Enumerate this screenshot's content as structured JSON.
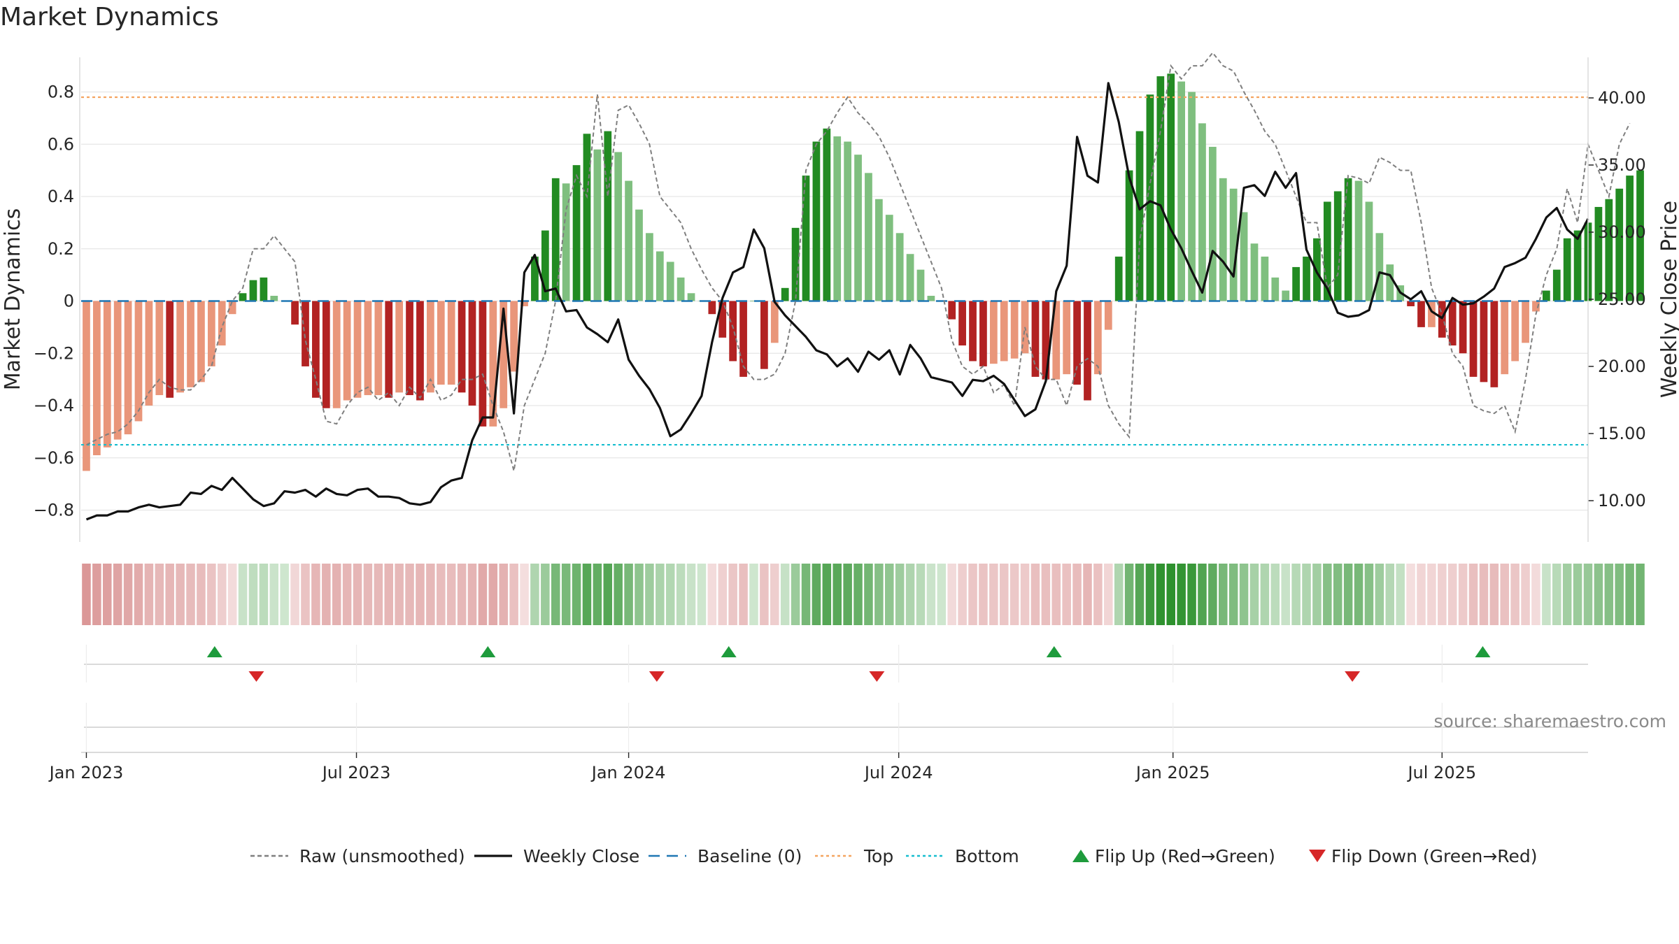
{
  "chart_data": {
    "type": "bar",
    "title": "Market Dynamics",
    "ylabel": "Market Dynamics",
    "y2label": "Weekly Close Price",
    "ylim": [
      -0.92,
      0.92
    ],
    "y2lim": [
      6.0,
      43.0
    ],
    "y_ticks": [
      -0.8,
      -0.6,
      -0.4,
      -0.2,
      0,
      0.2,
      0.4,
      0.6,
      0.8
    ],
    "y_tick_labels": [
      "−0.8",
      "−0.6",
      "−0.4",
      "−0.2",
      "0",
      "0.2",
      "0.4",
      "0.6",
      "0.8"
    ],
    "y2_ticks": [
      10,
      15,
      20,
      25,
      30,
      35,
      40
    ],
    "y2_tick_labels": [
      "10.00",
      "15.00",
      "20.00",
      "25.00",
      "30.00",
      "35.00",
      "40.00"
    ],
    "x_tick_labels": [
      "Jan 2023",
      "Jul 2023",
      "Jan 2024",
      "Jul 2024",
      "Jan 2025",
      "Jul 2025"
    ],
    "x_tick_weeks": [
      1,
      26.9,
      53,
      78.9,
      105.2,
      131
    ],
    "weeks": 145,
    "top_line": 0.78,
    "bottom_line": -0.55,
    "baseline": 0,
    "grid": true,
    "legend_position": "bottom-center",
    "source": "source: sharemaestro.com",
    "series": [
      {
        "name": "Raw (unsmoothed)",
        "style": "dashed",
        "color": "#7f7f7f",
        "values": [
          -0.55,
          -0.53,
          -0.51,
          -0.5,
          -0.47,
          -0.42,
          -0.35,
          -0.3,
          -0.33,
          -0.34,
          -0.34,
          -0.3,
          -0.25,
          -0.1,
          0,
          0.05,
          0.2,
          0.2,
          0.25,
          0.2,
          0.15,
          -0.15,
          -0.3,
          -0.46,
          -0.47,
          -0.4,
          -0.35,
          -0.33,
          -0.38,
          -0.35,
          -0.4,
          -0.33,
          -0.37,
          -0.3,
          -0.38,
          -0.36,
          -0.3,
          -0.3,
          -0.28,
          -0.4,
          -0.5,
          -0.65,
          -0.4,
          -0.3,
          -0.2,
          0,
          0.35,
          0.48,
          0.4,
          0.79,
          0.4,
          0.73,
          0.75,
          0.68,
          0.6,
          0.4,
          0.35,
          0.3,
          0.2,
          0.12,
          0.05,
          0.0,
          -0.1,
          -0.25,
          -0.3,
          -0.3,
          -0.28,
          -0.2,
          0.0,
          0.5,
          0.6,
          0.65,
          0.72,
          0.78,
          0.72,
          0.68,
          0.63,
          0.55,
          0.45,
          0.35,
          0.25,
          0.15,
          0.05,
          -0.15,
          -0.25,
          -0.28,
          -0.25,
          -0.35,
          -0.32,
          -0.4,
          -0.1,
          -0.25,
          -0.3,
          -0.3,
          -0.4,
          -0.25,
          -0.22,
          -0.25,
          -0.4,
          -0.47,
          -0.52,
          0.23,
          0.45,
          0.65,
          0.9,
          0.85,
          0.9,
          0.9,
          0.95,
          0.9,
          0.88,
          0.8,
          0.73,
          0.65,
          0.6,
          0.5,
          0.4,
          0.3,
          0.3,
          0.05,
          0.1,
          0.48,
          0.47,
          0.45,
          0.55,
          0.53,
          0.5,
          0.5,
          0.3,
          0.05,
          -0.05,
          -0.2,
          -0.25,
          -0.4,
          -0.42,
          -0.43,
          -0.4,
          -0.5,
          -0.3,
          -0.05,
          0.1,
          0.2,
          0.43,
          0.3,
          0.6,
          0.5,
          0.4,
          0.6,
          0.68
        ]
      },
      {
        "name": "Weekly Close",
        "style": "solid",
        "color": "#111111",
        "axis": "right",
        "values": [
          8.6,
          8.9,
          8.9,
          9.2,
          9.2,
          9.5,
          9.7,
          9.5,
          9.6,
          9.7,
          10.6,
          10.5,
          11.1,
          10.8,
          11.7,
          10.9,
          10.1,
          9.6,
          9.8,
          10.7,
          10.6,
          10.8,
          10.3,
          10.9,
          10.5,
          10.4,
          10.8,
          10.9,
          10.3,
          10.3,
          10.2,
          9.8,
          9.7,
          9.9,
          11.0,
          11.5,
          11.7,
          14.5,
          16.2,
          16.2,
          24.3,
          16.5,
          27.0,
          28.3,
          25.6,
          25.8,
          24.1,
          24.2,
          22.9,
          22.4,
          21.8,
          23.5,
          20.5,
          19.3,
          18.3,
          16.9,
          14.8,
          15.3,
          16.5,
          17.8,
          21.8,
          25.1,
          27.0,
          27.4,
          30.2,
          28.8,
          24.8,
          23.8,
          23.0,
          22.2,
          21.2,
          20.9,
          20.0,
          20.6,
          19.6,
          21.1,
          20.5,
          21.2,
          19.4,
          21.6,
          20.6,
          19.2,
          19.0,
          18.8,
          17.8,
          19.0,
          18.9,
          19.3,
          18.7,
          17.5,
          16.3,
          16.8,
          18.9,
          25.6,
          27.5,
          37.1,
          34.2,
          33.7,
          41.1,
          38.2,
          34.1,
          31.7,
          32.3,
          32.0,
          30.2,
          28.8,
          27.1,
          25.5,
          28.6,
          27.8,
          26.7,
          33.3,
          33.5,
          32.7,
          34.5,
          33.3,
          34.4,
          28.7,
          27.0,
          25.8,
          24.0,
          23.7,
          23.8,
          24.2,
          27.0,
          26.8,
          25.5,
          25.0,
          25.6,
          24.1,
          23.6,
          25.1,
          24.6,
          24.7,
          25.2,
          25.8,
          27.4,
          27.7,
          28.1,
          29.5,
          31.1,
          31.8,
          30.2,
          29.5,
          31.0
        ]
      }
    ],
    "bars": {
      "name": "Market Dynamics",
      "values": [
        -0.65,
        -0.59,
        -0.56,
        -0.53,
        -0.51,
        -0.46,
        -0.4,
        -0.36,
        -0.37,
        -0.35,
        -0.33,
        -0.31,
        -0.25,
        -0.17,
        -0.05,
        0.03,
        0.08,
        0.09,
        0.02,
        0.0,
        -0.09,
        -0.25,
        -0.37,
        -0.41,
        -0.41,
        -0.38,
        -0.37,
        -0.36,
        -0.36,
        -0.37,
        -0.35,
        -0.36,
        -0.38,
        -0.35,
        -0.32,
        -0.32,
        -0.35,
        -0.4,
        -0.48,
        -0.48,
        -0.41,
        -0.27,
        -0.02,
        0.17,
        0.27,
        0.47,
        0.45,
        0.52,
        0.64,
        0.58,
        0.65,
        0.57,
        0.46,
        0.35,
        0.26,
        0.19,
        0.15,
        0.09,
        0.03,
        0.0,
        -0.05,
        -0.14,
        -0.23,
        -0.29,
        0.0,
        -0.26,
        -0.16,
        0.05,
        0.28,
        0.48,
        0.61,
        0.66,
        0.63,
        0.61,
        0.56,
        0.49,
        0.39,
        0.33,
        0.26,
        0.18,
        0.12,
        0.02,
        0.0,
        -0.07,
        -0.17,
        -0.23,
        -0.25,
        -0.24,
        -0.23,
        -0.22,
        -0.2,
        -0.29,
        -0.3,
        -0.3,
        -0.28,
        -0.32,
        -0.38,
        -0.28,
        -0.11,
        0.17,
        0.5,
        0.65,
        0.79,
        0.86,
        0.87,
        0.84,
        0.8,
        0.68,
        0.59,
        0.47,
        0.43,
        0.34,
        0.22,
        0.17,
        0.09,
        0.04,
        0.13,
        0.17,
        0.24,
        0.38,
        0.42,
        0.47,
        0.46,
        0.38,
        0.26,
        0.14,
        0.06,
        -0.02,
        -0.1,
        -0.1,
        -0.14,
        -0.17,
        -0.2,
        -0.29,
        -0.31,
        -0.33,
        -0.28,
        -0.23,
        -0.16,
        -0.04,
        0.04,
        0.12,
        0.24,
        0.27,
        0.3,
        0.36,
        0.39,
        0.43,
        0.48,
        0.5
      ],
      "colors": {
        "strong_up": "#228B22",
        "weak_up": "#7FBF7F",
        "strong_down": "#B22222",
        "weak_down": "#E9967A"
      }
    },
    "markers": {
      "flip_up_weeks": [
        13.3,
        39.5,
        62.6,
        93.8,
        134.9
      ],
      "flip_down_weeks": [
        17.3,
        55.7,
        76.8,
        122.4
      ]
    },
    "legend": [
      {
        "label": "Raw (unsmoothed)",
        "kind": "dashed",
        "color": "#7f7f7f"
      },
      {
        "label": "Weekly Close",
        "kind": "solid",
        "color": "#111111"
      },
      {
        "label": "Baseline (0)",
        "kind": "longdash",
        "color": "#1f77b4"
      },
      {
        "label": "Top",
        "kind": "dotted",
        "color": "#f4a460"
      },
      {
        "label": "Bottom",
        "kind": "dotted",
        "color": "#17becf"
      },
      {
        "label": "Flip Up (Red→Green)",
        "kind": "tri-up",
        "color": "#1e9b3c"
      },
      {
        "label": "Flip Down (Green→Red)",
        "kind": "tri-down",
        "color": "#d62728"
      }
    ]
  }
}
